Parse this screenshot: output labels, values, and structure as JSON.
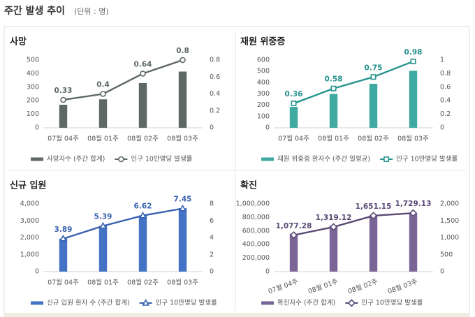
{
  "header": {
    "title": "주간 발생 추이",
    "unit": "(단위 : 명)"
  },
  "chart_data": [
    {
      "type": "bar-line",
      "title": "사망",
      "categories": [
        "07월 04주",
        "08월 01주",
        "08월 02주",
        "08월 03주"
      ],
      "series": [
        {
          "name": "사망자수 (주간 합계)",
          "color": "#5e6867",
          "values": [
            170,
            210,
            330,
            415
          ]
        },
        {
          "name": "인구 10만명당 발생률",
          "color": "#5e6867",
          "axis": "y2",
          "marker": "circle",
          "values": [
            0.33,
            0.4,
            0.64,
            0.8
          ]
        }
      ],
      "ylim": [
        0,
        500
      ],
      "yticks": [
        0,
        100,
        200,
        300,
        400,
        500
      ],
      "y2lim": [
        0,
        0.8
      ],
      "y2ticks": [
        0,
        0.2,
        0.4,
        0.6,
        0.8
      ],
      "grid": false
    },
    {
      "type": "bar-line",
      "title": "재원 위중증",
      "categories": [
        "07월 04주",
        "08월 01주",
        "08월 02주",
        "08월 03주"
      ],
      "series": [
        {
          "name": "재원 위중증 환자수 (주간 일평균)",
          "color": "#3fa9a2",
          "values": [
            185,
            300,
            390,
            505
          ]
        },
        {
          "name": "인구 10만명당 발생률",
          "color": "#25948d",
          "axis": "y2",
          "marker": "square",
          "values": [
            0.36,
            0.58,
            0.75,
            0.98
          ]
        }
      ],
      "ylim": [
        0,
        600
      ],
      "yticks": [
        0,
        100,
        200,
        300,
        400,
        500,
        600
      ],
      "y2lim": [
        0,
        1
      ],
      "y2ticks": [
        0,
        0.2,
        0.4,
        0.6,
        0.8,
        1
      ],
      "grid": false
    },
    {
      "type": "bar-line",
      "title": "신규 입원",
      "categories": [
        "07월 04주",
        "08월 01주",
        "08월 02주",
        "08월 03주"
      ],
      "series": [
        {
          "name": "신규 입원 환자 수 (주간 합계)",
          "color": "#4472c4",
          "values": [
            1950,
            2700,
            3320,
            3750
          ]
        },
        {
          "name": "인구 10만명당 발생률",
          "color": "#3a62b0",
          "axis": "y2",
          "marker": "triangle",
          "values": [
            3.89,
            5.39,
            6.62,
            7.45
          ]
        }
      ],
      "ylim": [
        0,
        4000
      ],
      "yticks": [
        0,
        {
          "value": 1000,
          "label": "1,000"
        },
        {
          "value": 2000,
          "label": "2,000"
        },
        {
          "value": 3000,
          "label": "3,000"
        },
        {
          "value": 4000,
          "label": "4,000"
        }
      ],
      "y2lim": [
        0,
        8
      ],
      "y2ticks": [
        0,
        2,
        4,
        6,
        8
      ],
      "grid": false
    },
    {
      "type": "bar-line",
      "title": "확진",
      "categories": [
        "07월 04주",
        "08월 01주",
        "08월 02주",
        "08월 03주"
      ],
      "series": [
        {
          "name": "확진자수 (주간 합계)",
          "color": "#7a6597",
          "values": [
            560000,
            680000,
            820000,
            860000
          ]
        },
        {
          "name": "인구 10만명당 발생률",
          "color": "#5a4a75",
          "axis": "y2",
          "marker": "diamond",
          "values": [
            1077.28,
            1319.12,
            1651.15,
            1729.13
          ],
          "value_labels": [
            "1,077.28",
            "1,319.12",
            "1,651.15",
            "1,729.13"
          ]
        }
      ],
      "ylim": [
        0,
        1000000
      ],
      "yticks": [
        0,
        {
          "value": 200000,
          "label": "200,000"
        },
        {
          "value": 400000,
          "label": "400,000"
        },
        {
          "value": 600000,
          "label": "600,000"
        },
        {
          "value": 800000,
          "label": "800,000"
        },
        {
          "value": 1000000,
          "label": "1,000,000"
        }
      ],
      "y2lim": [
        0,
        2000
      ],
      "y2ticks": [
        0,
        500,
        {
          "value": 1000,
          "label": "1,000"
        },
        {
          "value": 1500,
          "label": "1,500"
        },
        {
          "value": 2000,
          "label": "2,000"
        }
      ],
      "xlabel_rotation": -20,
      "grid": false
    }
  ]
}
